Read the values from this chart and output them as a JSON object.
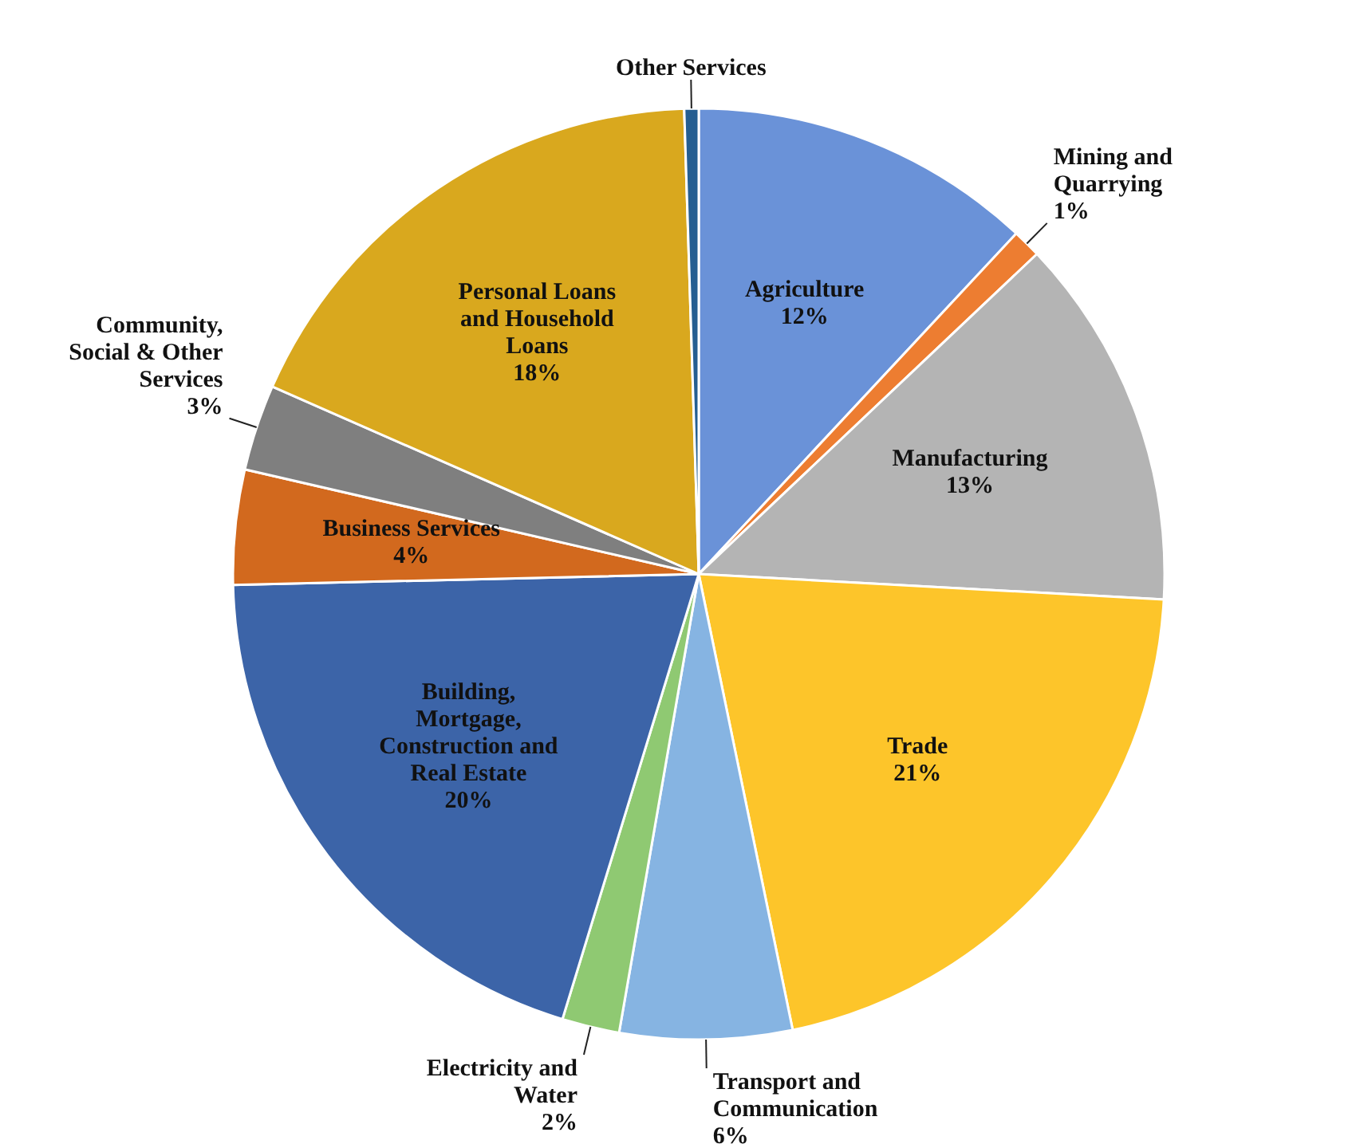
{
  "chart_data": {
    "type": "pie",
    "categories": [
      "Agriculture",
      "Mining and\nQuarrying",
      "Manufacturing",
      "Trade",
      "Transport and\nCommunication",
      "Electricity and\nWater",
      "Building,\nMortgage,\nConstruction and\nReal Estate",
      "Business Services",
      "Community,\nSocial & Other\nServices",
      "Personal Loans\nand Household\nLoans",
      "Other Services"
    ],
    "values": [
      12,
      1,
      13,
      21,
      6,
      2,
      20,
      4,
      3,
      18,
      0.5
    ],
    "value_labels": [
      "12%",
      "1%",
      "13%",
      "21%",
      "6%",
      "2%",
      "20%",
      "4%",
      "3%",
      "18%",
      null
    ],
    "colors": [
      "#6a92d8",
      "#ed7d31",
      "#b4b4b4",
      "#fdc52a",
      "#86b4e2",
      "#8fc972",
      "#3c64a8",
      "#d2691e",
      "#7f7f7f",
      "#d9a81e",
      "#255e91"
    ]
  }
}
